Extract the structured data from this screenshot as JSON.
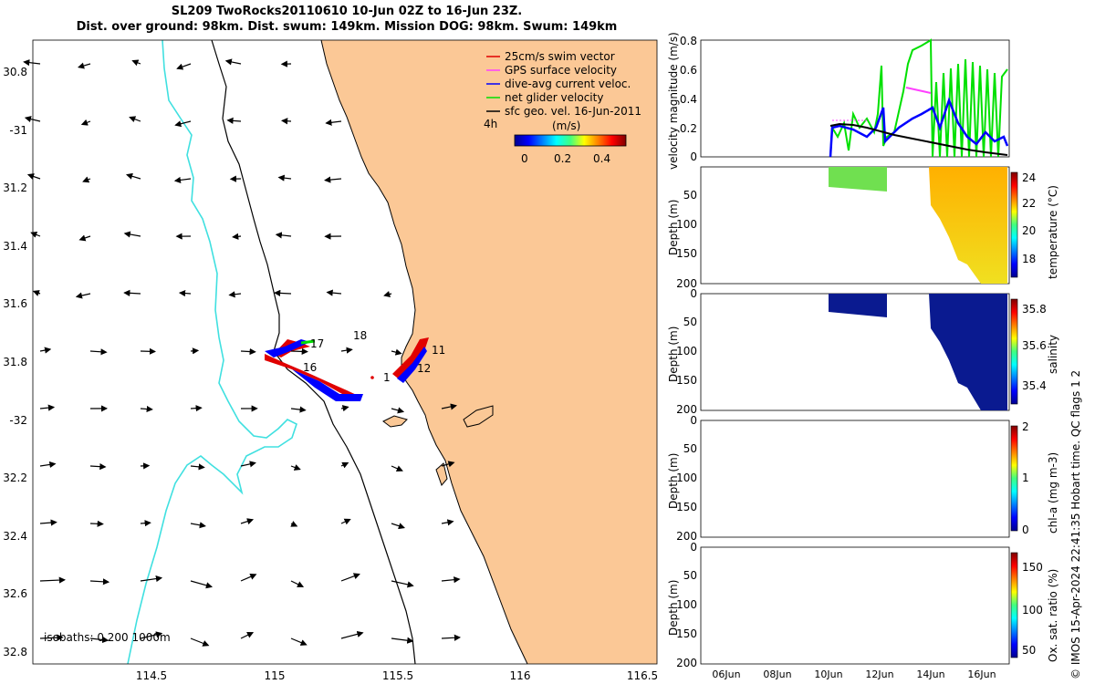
{
  "title_line1": "SL209 TwoRocks20110610 10-Jun 02Z to 16-Jun 23Z.",
  "title_line2": "Dist. over ground: 98km. Dist. swum: 149km. Mission DOG: 98km. Swum: 149km",
  "map": {
    "lat_ticks": [
      "30.8",
      "-31",
      "31.2",
      "31.4",
      "31.6",
      "31.8",
      "-32",
      "32.2",
      "32.4",
      "32.6",
      "32.8"
    ],
    "lon_ticks": [
      "114.5",
      "115",
      "115.5",
      "116",
      "116.5"
    ],
    "legend": [
      {
        "label": "25cm/s swim vector",
        "color": "#e00000"
      },
      {
        "label": "GPS surface velocity",
        "color": "#ff40ff"
      },
      {
        "label": "dive-avg current veloc.",
        "color": "#0000ff"
      },
      {
        "label": "net glider velocity",
        "color": "#00e000"
      },
      {
        "label": "sfc geo. vel. 16-Jun-2011",
        "color": "#000000"
      }
    ],
    "colorbar": {
      "label": "4h",
      "unit": "(m/s)",
      "ticks": [
        "0",
        "0.2",
        "0.4"
      ]
    },
    "isobaths_label": "isobaths: 0    200   1000m",
    "day_labels": [
      {
        "text": "17"
      },
      {
        "text": "18"
      },
      {
        "text": "16"
      },
      {
        "text": "11"
      },
      {
        "text": "12"
      },
      {
        "text": "1"
      }
    ],
    "colors": {
      "land": "#fbc896",
      "isobath_200": "#000000",
      "isobath_1000": "#40e0e0"
    }
  },
  "panels": {
    "velocity": {
      "ylabel": "velocity magnitude (m/s)",
      "yticks": [
        "0.8",
        "0.6",
        "0.4",
        "0.2",
        "0"
      ]
    },
    "temperature": {
      "ylabel": "Depth (m)",
      "cblabel": "temperature (°C)",
      "cbticks": [
        "24",
        "22",
        "20",
        "18"
      ]
    },
    "salinity": {
      "ylabel": "Depth (m)",
      "cblabel": "salinity",
      "cbticks": [
        "35.8",
        "35.6",
        "35.4"
      ]
    },
    "chla": {
      "ylabel": "Depth (m)",
      "cblabel": "chl-a (mg m-3)",
      "cbticks": [
        "2",
        "1",
        "0"
      ]
    },
    "oxygen": {
      "ylabel": "Depth (m)",
      "cblabel": "Ox. sat. ratio (%)",
      "cbticks": [
        "150",
        "100",
        "50"
      ]
    },
    "depth_ticks": [
      "0",
      "50",
      "100",
      "150",
      "200"
    ],
    "time_ticks": [
      "06Jun",
      "08Jun",
      "10Jun",
      "12Jun",
      "14Jun",
      "16Jun"
    ]
  },
  "credit": "© IMOS 15-Apr-2024 22:41:35 Hobart time. QC flags 1  2"
}
